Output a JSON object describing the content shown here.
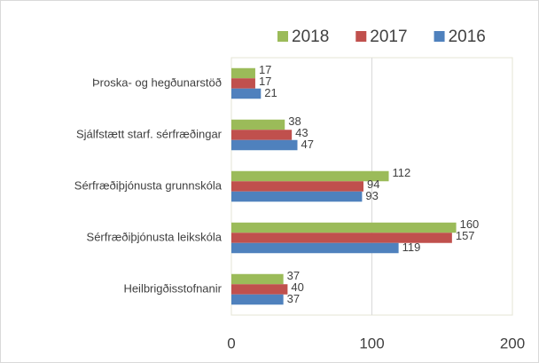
{
  "chart_data": {
    "type": "bar",
    "orientation": "horizontal",
    "categories": [
      "Þroska- og hegðunarstöð",
      "Sjálfstætt starf. sérfræðingar",
      "Sérfræðiþjónusta grunnskóla",
      "Sérfræðiþjónusta leikskóla",
      "Heilbrigðisstofnanir"
    ],
    "series": [
      {
        "name": "2018",
        "color": "#9bbb59",
        "values": [
          17,
          38,
          112,
          160,
          37
        ]
      },
      {
        "name": "2017",
        "color": "#c0504d",
        "values": [
          17,
          43,
          94,
          157,
          40
        ]
      },
      {
        "name": "2016",
        "color": "#4f81bd",
        "values": [
          21,
          47,
          93,
          119,
          37
        ]
      }
    ],
    "xlim": [
      0,
      200
    ],
    "xticks": [
      0,
      100,
      200
    ],
    "grid": true,
    "legend": "top-right"
  }
}
